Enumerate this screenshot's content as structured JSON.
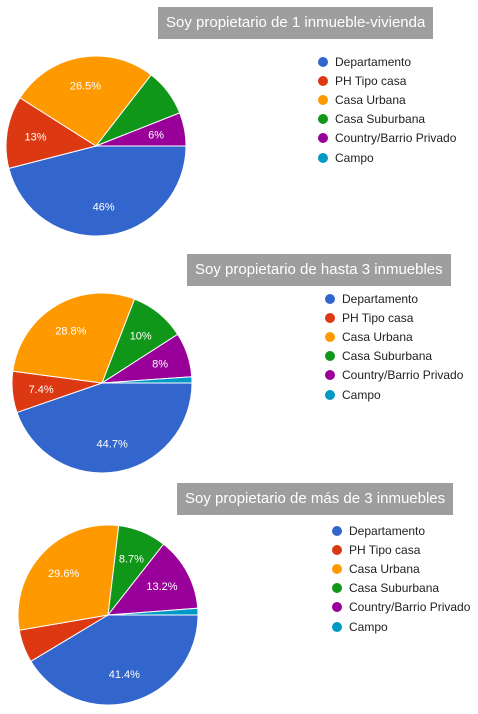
{
  "chart_data": [
    {
      "type": "pie",
      "title": "Soy propietario de 1 inmueble-vivienda",
      "categories": [
        "Departamento",
        "PH Tipo casa",
        "Casa Urbana",
        "Casa Suburbana",
        "Country/Barrio Privado",
        "Campo"
      ],
      "values": [
        46,
        13,
        26.5,
        8.5,
        6,
        0
      ],
      "labels": [
        "46%",
        "13%",
        "26.5%",
        "",
        "6%",
        ""
      ],
      "colors": [
        "#3366cc",
        "#dc3912",
        "#ff9900",
        "#109618",
        "#990099",
        "#0099c6"
      ],
      "legend": "right"
    },
    {
      "type": "pie",
      "title": "Soy propietario de hasta 3 inmuebles",
      "categories": [
        "Departamento",
        "PH Tipo casa",
        "Casa Urbana",
        "Casa Suburbana",
        "Country/Barrio Privado",
        "Campo"
      ],
      "values": [
        44.7,
        7.4,
        28.8,
        10,
        8,
        1.1
      ],
      "labels": [
        "44.7%",
        "7.4%",
        "28.8%",
        "10%",
        "8%",
        ""
      ],
      "colors": [
        "#3366cc",
        "#dc3912",
        "#ff9900",
        "#109618",
        "#990099",
        "#0099c6"
      ],
      "legend": "right"
    },
    {
      "type": "pie",
      "title": "Soy propietario de más de 3 inmuebles",
      "categories": [
        "Departamento",
        "PH Tipo casa",
        "Casa Urbana",
        "Casa Suburbana",
        "Country/Barrio Privado",
        "Campo"
      ],
      "values": [
        41.4,
        5.9,
        29.6,
        8.7,
        13.2,
        1.2
      ],
      "labels": [
        "41.4%",
        "",
        "29.6%",
        "8.7%",
        "13.2%",
        ""
      ],
      "colors": [
        "#3366cc",
        "#dc3912",
        "#ff9900",
        "#109618",
        "#990099",
        "#0099c6"
      ],
      "legend": "right"
    }
  ]
}
